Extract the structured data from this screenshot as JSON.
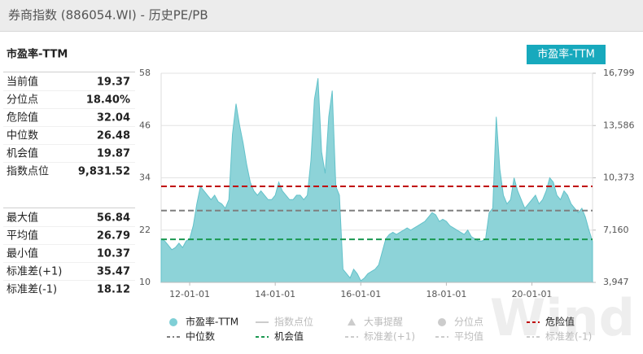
{
  "header": {
    "title": "券商指数 (886054.WI) - 历史PE/PB",
    "button": "市盈率-TTM"
  },
  "panel": {
    "title": "市盈率-TTM",
    "groups": [
      [
        {
          "label": "当前值",
          "value": 19.37
        },
        {
          "label": "分位点",
          "value": {
            "value": 18.4,
            "label": "18.40%"
          }
        },
        {
          "label": "危险值",
          "value": 32.04
        },
        {
          "label": "中位数",
          "value": 26.48
        },
        {
          "label": "机会值",
          "value": 19.87
        },
        {
          "label": "指数点位",
          "value": {
            "value": 9831.52,
            "label": "9,831.52"
          }
        }
      ],
      [
        {
          "label": "最大值",
          "value": 56.84
        },
        {
          "label": "平均值",
          "value": 26.79
        },
        {
          "label": "最小值",
          "value": 10.37
        },
        {
          "label": "标准差(+1)",
          "value": 35.47
        },
        {
          "label": "标准差(-1)",
          "value": 18.12
        }
      ]
    ]
  },
  "chart_data": {
    "type": "area",
    "categories": [
      null,
      null,
      null,
      null,
      null,
      null,
      null,
      null,
      "12-01-01",
      null,
      null,
      null,
      null,
      null,
      null,
      null,
      null,
      null,
      null,
      null,
      null,
      null,
      null,
      null,
      null,
      null,
      null,
      null,
      null,
      null,
      null,
      null,
      "14-01-01",
      null,
      null,
      null,
      null,
      null,
      null,
      null,
      null,
      null,
      null,
      null,
      null,
      null,
      null,
      null,
      null,
      null,
      null,
      null,
      null,
      null,
      null,
      null,
      "16-01-01",
      null,
      null,
      null,
      null,
      null,
      null,
      null,
      null,
      null,
      null,
      null,
      null,
      null,
      null,
      null,
      null,
      null,
      null,
      null,
      null,
      null,
      null,
      null,
      "18-01-01",
      null,
      null,
      null,
      null,
      null,
      null,
      null,
      null,
      null,
      null,
      null,
      null,
      null,
      null,
      null,
      null,
      null,
      null,
      null,
      null,
      null,
      null,
      null,
      "20-01-01",
      null,
      null,
      null,
      null,
      null,
      null,
      null,
      null,
      null,
      null,
      null,
      null,
      null,
      null,
      null,
      null,
      null
    ],
    "series": [
      {
        "name": "市盈率-TTM",
        "color": "#8dd3d8",
        "values": [
          20,
          19.5,
          18.5,
          17.5,
          18,
          19,
          18,
          19.5,
          20,
          23,
          28,
          32,
          31,
          30,
          29,
          30,
          28.5,
          28,
          27,
          29,
          44,
          51,
          46,
          42,
          37,
          33,
          31,
          30,
          31,
          30,
          29,
          29,
          30,
          33,
          31,
          30,
          29,
          29,
          30,
          30,
          29,
          30,
          38,
          52,
          56.84,
          40,
          35,
          48,
          54,
          32,
          30,
          13,
          12,
          11,
          13,
          12,
          10.37,
          11,
          12,
          12.5,
          13,
          14,
          17,
          20,
          21,
          21.5,
          21,
          21.5,
          22,
          22.5,
          22,
          22.5,
          23,
          23.5,
          24,
          25,
          26,
          25.5,
          24,
          24.5,
          24,
          23,
          22.5,
          22,
          21.5,
          21,
          22,
          20.5,
          20,
          19.5,
          19.5,
          20,
          26,
          27,
          48,
          36,
          30,
          28,
          29,
          34,
          31,
          29,
          27,
          28,
          29,
          30,
          28,
          29,
          31,
          34,
          33,
          30,
          29,
          31,
          30,
          28,
          27,
          26,
          27,
          25,
          22,
          19.37
        ]
      }
    ],
    "reference_lines": [
      {
        "value": 32.04,
        "color": "#c00000"
      },
      {
        "value": 26.48,
        "color": "#7f7f7f"
      },
      {
        "value": 19.87,
        "color": "#1a9850"
      }
    ],
    "ylim": [
      10,
      58
    ],
    "yticks": [
      10,
      22,
      34,
      46,
      58
    ],
    "y2lim": [
      3947,
      16799
    ],
    "y2ticks": [
      {
        "value": 3947,
        "label": "3,947"
      },
      {
        "value": 7160,
        "label": "7,160"
      },
      {
        "value": 10373,
        "label": "10,373"
      },
      {
        "value": 13586,
        "label": "13,586"
      },
      {
        "value": 16799,
        "label": "16,799"
      }
    ],
    "grid": true,
    "legend": [
      {
        "name": "市盈率-TTM",
        "symbol": "circle",
        "color": "#7fcfd6",
        "active": true
      },
      {
        "name": "指数点位",
        "symbol": "line",
        "color": "#cccccc",
        "active": false
      },
      {
        "name": "大事提醒",
        "symbol": "triangle",
        "color": "#cccccc",
        "active": false
      },
      {
        "name": "分位点",
        "symbol": "circle",
        "color": "#cccccc",
        "active": false
      },
      {
        "name": "危险值",
        "symbol": "dash",
        "color": "#c00000",
        "active": true
      },
      {
        "name": "中位数",
        "symbol": "dashdot",
        "color": "#7f7f7f",
        "active": true
      },
      {
        "name": "机会值",
        "symbol": "dash",
        "color": "#1a9850",
        "active": true
      },
      {
        "name": "标准差(+1)",
        "symbol": "dash",
        "color": "#cccccc",
        "active": false
      },
      {
        "name": "平均值",
        "symbol": "dash",
        "color": "#cccccc",
        "active": false
      },
      {
        "name": "标准差(-1)",
        "symbol": "dashdot",
        "color": "#cccccc",
        "active": false
      }
    ],
    "watermark": "Wind"
  }
}
